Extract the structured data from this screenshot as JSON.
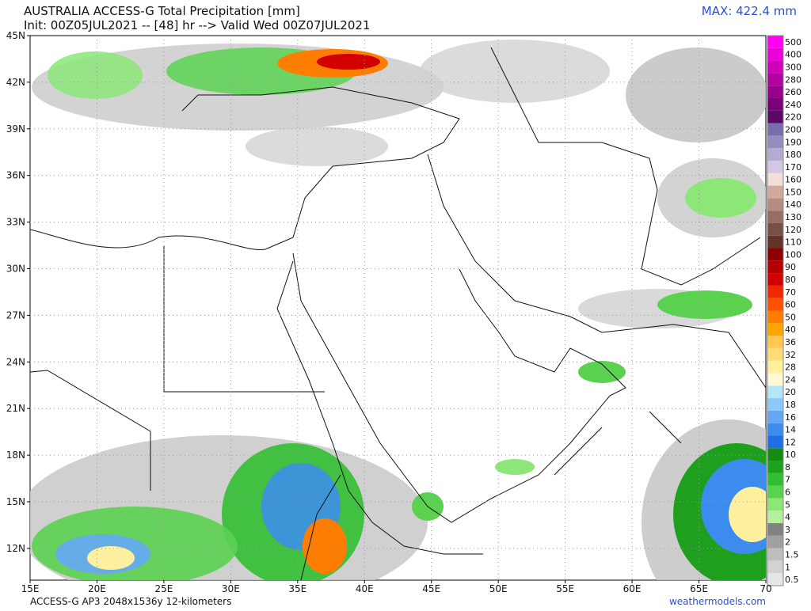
{
  "header": {
    "title": "AUSTRALIA ACCESS-G Total Precipitation [mm]",
    "init": "Init: 00Z05JUL2021 -- [48] hr --> Valid Wed 00Z07JUL2021",
    "max": "MAX: 422.4 mm"
  },
  "axes": {
    "lat_labels": [
      "45N",
      "42N",
      "39N",
      "36N",
      "33N",
      "30N",
      "27N",
      "24N",
      "21N",
      "18N",
      "15N",
      "12N"
    ],
    "lon_labels": [
      "15E",
      "20E",
      "25E",
      "30E",
      "35E",
      "40E",
      "45E",
      "50E",
      "55E",
      "60E",
      "65E",
      "70"
    ]
  },
  "colorbar": {
    "items": [
      {
        "label": "0.5",
        "color": "#e6e6e6"
      },
      {
        "label": "1",
        "color": "#d2d2d2"
      },
      {
        "label": "1.5",
        "color": "#bebebe"
      },
      {
        "label": "2",
        "color": "#a0a0a0"
      },
      {
        "label": "3",
        "color": "#828282"
      },
      {
        "label": "4",
        "color": "#b4f0a0"
      },
      {
        "label": "5",
        "color": "#8ce678"
      },
      {
        "label": "6",
        "color": "#5ad250"
      },
      {
        "label": "7",
        "color": "#32be32"
      },
      {
        "label": "8",
        "color": "#1ea01e"
      },
      {
        "label": "10",
        "color": "#148c14"
      },
      {
        "label": "12",
        "color": "#1e6ee6"
      },
      {
        "label": "14",
        "color": "#3c8cf0"
      },
      {
        "label": "16",
        "color": "#64a8f5"
      },
      {
        "label": "18",
        "color": "#8cc8fa"
      },
      {
        "label": "20",
        "color": "#b4e6fa"
      },
      {
        "label": "24",
        "color": "#fffad2"
      },
      {
        "label": "28",
        "color": "#fff0a0"
      },
      {
        "label": "32",
        "color": "#ffdc78"
      },
      {
        "label": "36",
        "color": "#ffc850"
      },
      {
        "label": "40",
        "color": "#ffa500"
      },
      {
        "label": "50",
        "color": "#ff7d00"
      },
      {
        "label": "60",
        "color": "#ff5000"
      },
      {
        "label": "70",
        "color": "#f02800"
      },
      {
        "label": "80",
        "color": "#d20000"
      },
      {
        "label": "90",
        "color": "#b40000"
      },
      {
        "label": "100",
        "color": "#8c0000"
      },
      {
        "label": "110",
        "color": "#643228"
      },
      {
        "label": "120",
        "color": "#785046"
      },
      {
        "label": "130",
        "color": "#966e64"
      },
      {
        "label": "140",
        "color": "#b48c82"
      },
      {
        "label": "150",
        "color": "#d2aa9b"
      },
      {
        "label": "160",
        "color": "#f0e0d8"
      },
      {
        "label": "170",
        "color": "#d2c8e6"
      },
      {
        "label": "180",
        "color": "#b4aad2"
      },
      {
        "label": "190",
        "color": "#968cbe"
      },
      {
        "label": "200",
        "color": "#786eaa"
      },
      {
        "label": "220",
        "color": "#5a0a64"
      },
      {
        "label": "240",
        "color": "#780078"
      },
      {
        "label": "260",
        "color": "#96008c"
      },
      {
        "label": "280",
        "color": "#b400a0"
      },
      {
        "label": "300",
        "color": "#d200b9"
      },
      {
        "label": "400",
        "color": "#eb00d7"
      },
      {
        "label": "500",
        "color": "#ff00f0"
      }
    ]
  },
  "footer": {
    "left": "ACCESS-G AP3 2048x1536y 12-kilometers",
    "right": "weathermodels.com"
  }
}
